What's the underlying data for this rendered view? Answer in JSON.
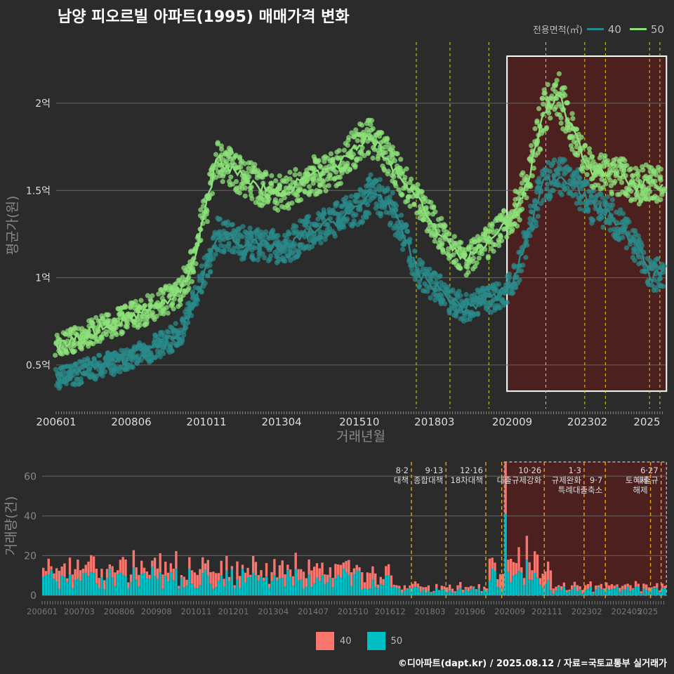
{
  "title": "남양 피오르빌 아파트(1995) 매매가격 변화",
  "legend": {
    "title": "전용면적(㎡)",
    "items": [
      {
        "label": "40",
        "color": "#2a8a8a"
      },
      {
        "label": "50",
        "color": "#8ce27a"
      }
    ]
  },
  "bar_legend": [
    {
      "label": "40",
      "color": "#f8766d"
    },
    {
      "label": "50",
      "color": "#00bfc4"
    }
  ],
  "footer": "©디아파트(dapt.kr) / 2025.08.12 / 자료=국토교통부 실거래가",
  "chart_data": [
    {
      "type": "line",
      "xlabel": "거래년월",
      "ylabel": "평균가(원)",
      "x_ticks": [
        "200601",
        "200806",
        "201011",
        "201304",
        "201510",
        "201803",
        "202009",
        "202302",
        "2025"
      ],
      "y_ticks": [
        {
          "v": 0.5,
          "label": "0.5억"
        },
        {
          "v": 1.0,
          "label": "1억"
        },
        {
          "v": 1.5,
          "label": "1.5억"
        },
        {
          "v": 2.0,
          "label": "2억"
        }
      ],
      "ylim": [
        0.25,
        2.35
      ],
      "x_range": [
        "2006-01",
        "2025-08"
      ],
      "vlines": [
        "2017-08",
        "2018-09",
        "2019-12",
        "2021-10",
        "2023-01",
        "2023-09",
        "2025-02",
        "2025-06"
      ],
      "highlight": {
        "from": "2020-07",
        "to": "2025-08",
        "y_from": 0.35,
        "y_to": 2.35
      },
      "series": [
        {
          "name": "40",
          "color": "#2a8a8a",
          "points": [
            [
              "2006-01",
              0.42
            ],
            [
              "2007-01",
              0.47
            ],
            [
              "2008-01",
              0.52
            ],
            [
              "2009-01",
              0.58
            ],
            [
              "2010-01",
              0.68
            ],
            [
              "2010-06",
              0.85
            ],
            [
              "2010-11",
              1.05
            ],
            [
              "2011-03",
              1.25
            ],
            [
              "2012-01",
              1.2
            ],
            [
              "2013-01",
              1.18
            ],
            [
              "2013-06",
              1.17
            ],
            [
              "2014-01",
              1.25
            ],
            [
              "2015-01",
              1.33
            ],
            [
              "2015-10",
              1.4
            ],
            [
              "2016-03",
              1.5
            ],
            [
              "2016-09",
              1.43
            ],
            [
              "2017-03",
              1.25
            ],
            [
              "2017-09",
              1.02
            ],
            [
              "2018-03",
              0.95
            ],
            [
              "2018-09",
              0.88
            ],
            [
              "2019-03",
              0.82
            ],
            [
              "2019-09",
              0.86
            ],
            [
              "2020-03",
              0.9
            ],
            [
              "2020-09",
              0.95
            ],
            [
              "2021-03",
              1.25
            ],
            [
              "2021-09",
              1.55
            ],
            [
              "2022-03",
              1.58
            ],
            [
              "2022-09",
              1.55
            ],
            [
              "2023-03",
              1.42
            ],
            [
              "2023-09",
              1.38
            ],
            [
              "2024-03",
              1.3
            ],
            [
              "2024-09",
              1.18
            ],
            [
              "2025-03",
              1.0
            ],
            [
              "2025-08",
              1.05
            ]
          ]
        },
        {
          "name": "50",
          "color": "#8ce27a",
          "points": [
            [
              "2006-01",
              0.6
            ],
            [
              "2007-01",
              0.68
            ],
            [
              "2008-01",
              0.75
            ],
            [
              "2009-01",
              0.82
            ],
            [
              "2010-01",
              0.92
            ],
            [
              "2010-06",
              1.1
            ],
            [
              "2010-11",
              1.42
            ],
            [
              "2011-03",
              1.68
            ],
            [
              "2012-01",
              1.58
            ],
            [
              "2013-01",
              1.48
            ],
            [
              "2013-06",
              1.5
            ],
            [
              "2014-01",
              1.57
            ],
            [
              "2015-01",
              1.62
            ],
            [
              "2015-10",
              1.78
            ],
            [
              "2016-03",
              1.8
            ],
            [
              "2016-09",
              1.68
            ],
            [
              "2017-03",
              1.55
            ],
            [
              "2017-09",
              1.45
            ],
            [
              "2018-03",
              1.3
            ],
            [
              "2018-09",
              1.18
            ],
            [
              "2019-03",
              1.1
            ],
            [
              "2019-09",
              1.18
            ],
            [
              "2020-03",
              1.25
            ],
            [
              "2020-09",
              1.35
            ],
            [
              "2021-03",
              1.55
            ],
            [
              "2021-09",
              1.95
            ],
            [
              "2022-03",
              2.05
            ],
            [
              "2022-09",
              1.82
            ],
            [
              "2023-03",
              1.62
            ],
            [
              "2023-09",
              1.6
            ],
            [
              "2024-03",
              1.58
            ],
            [
              "2024-09",
              1.52
            ],
            [
              "2025-03",
              1.55
            ],
            [
              "2025-08",
              1.5
            ]
          ]
        }
      ]
    },
    {
      "type": "bar",
      "ylabel": "거래량(건)",
      "ylim": [
        0,
        70
      ],
      "y_ticks": [
        0,
        20,
        40,
        60
      ],
      "x_ticks": [
        "200601",
        "200703",
        "200806",
        "200908",
        "201011",
        "201201",
        "201304",
        "201407",
        "201510",
        "201612",
        "201803",
        "201906",
        "202009",
        "202111",
        "202302",
        "202405",
        "2025"
      ],
      "x_range": [
        "2006-01",
        "2025-08"
      ],
      "stacking": "stacked",
      "series": [
        {
          "name": "40",
          "color": "#f8766d",
          "level_ranges": [
            [
              2006,
              2010,
              7
            ],
            [
              2010,
              2017,
              6
            ],
            [
              2017,
              2020,
              2
            ],
            [
              2020,
              2022,
              8
            ],
            [
              2022,
              2026,
              2
            ]
          ]
        },
        {
          "name": "50",
          "color": "#00bfc4",
          "level_ranges": [
            [
              2006,
              2010,
              10
            ],
            [
              2010,
              2017,
              9
            ],
            [
              2017,
              2020,
              3
            ],
            [
              2020,
              2022,
              9
            ],
            [
              2022,
              2026,
              3
            ]
          ]
        }
      ],
      "peaks": [
        [
          "2020-07",
          41,
          26
        ],
        [
          "2021-03",
          18,
          12
        ]
      ],
      "highlight": {
        "from": "2020-07",
        "to": "2025-08"
      },
      "events": [
        {
          "date": "2017-08",
          "label": "8·2 대책"
        },
        {
          "date": "2018-09",
          "label": "9·13 종합대책"
        },
        {
          "date": "2019-12",
          "label": "12·16 18차대책"
        },
        {
          "date": "2020-06",
          "label": ""
        },
        {
          "date": "2021-10",
          "label": "10·26 대출규제강화"
        },
        {
          "date": "2023-01",
          "label": "1·3 규제완화"
        },
        {
          "date": "2023-09",
          "label": "9·7 특례대출축소"
        },
        {
          "date": "2025-02",
          "label": "토허제 해제"
        },
        {
          "date": "2025-06",
          "label": "6·27 대출규"
        }
      ]
    }
  ]
}
